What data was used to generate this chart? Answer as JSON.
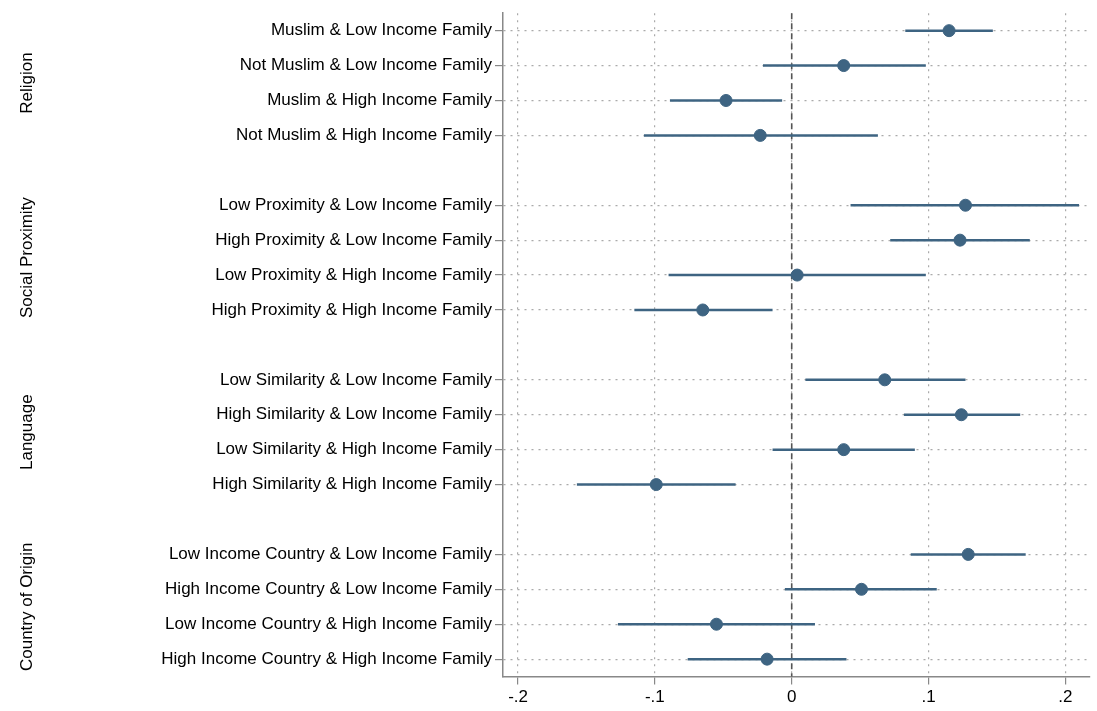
{
  "chart_data": {
    "type": "scatter",
    "orientation": "horizontal",
    "categories": [
      "Muslim & Low Income Family",
      "Not Muslim & Low Income Family",
      "Muslim & High Income Family",
      "Not Muslim & High Income Family",
      null,
      "Low Proximity & Low Income Family",
      "High Proximity & Low Income Family",
      "Low Proximity & High Income Family",
      "High Proximity & High Income Family",
      null,
      "Low Similarity & Low Income Family",
      "High Similarity & Low Income Family",
      "Low Similarity & High Income Family",
      "High Similarity & High Income Family",
      null,
      "Low Income Country & Low Income Family",
      "High Income Country & Low Income Family",
      "Low Income Country & High Income Family",
      "High Income Country & High Income Family"
    ],
    "series": [
      {
        "color": "#3e6482",
        "values": [
          0.115,
          0.038,
          -0.048,
          -0.023,
          null,
          0.127,
          0.123,
          0.004,
          -0.065,
          null,
          0.068,
          0.124,
          0.038,
          -0.099,
          null,
          0.129,
          0.051,
          -0.055,
          -0.018
        ],
        "errors": [
          [
            0.083,
            0.147
          ],
          [
            -0.021,
            0.098
          ],
          [
            -0.089,
            -0.007
          ],
          [
            -0.108,
            0.063
          ],
          null,
          [
            0.043,
            0.21
          ],
          [
            0.072,
            0.174
          ],
          [
            -0.09,
            0.098
          ],
          [
            -0.115,
            -0.014
          ],
          null,
          [
            0.01,
            0.127
          ],
          [
            0.082,
            0.167
          ],
          [
            -0.014,
            0.09
          ],
          [
            -0.157,
            -0.041
          ],
          null,
          [
            0.087,
            0.171
          ],
          [
            -0.005,
            0.106
          ],
          [
            -0.127,
            0.017
          ],
          [
            -0.076,
            0.04
          ]
        ]
      }
    ],
    "xlim": [
      -0.211,
      0.218
    ],
    "xticks": [
      {
        "value": -0.2,
        "label": "-.2"
      },
      {
        "value": -0.1,
        "label": "-.1"
      },
      0,
      {
        "value": 0.1,
        "label": ".1"
      },
      {
        "value": 0.2,
        "label": ".2"
      }
    ],
    "ref_lines": [
      {
        "axis": "x",
        "value": 0,
        "color": "#555555",
        "line_style": "dashed"
      }
    ],
    "annotations": [
      "Religion",
      "Social Proximity",
      "Language",
      "Country of Origin"
    ],
    "grid": true,
    "marker": "circle",
    "legend": false
  }
}
